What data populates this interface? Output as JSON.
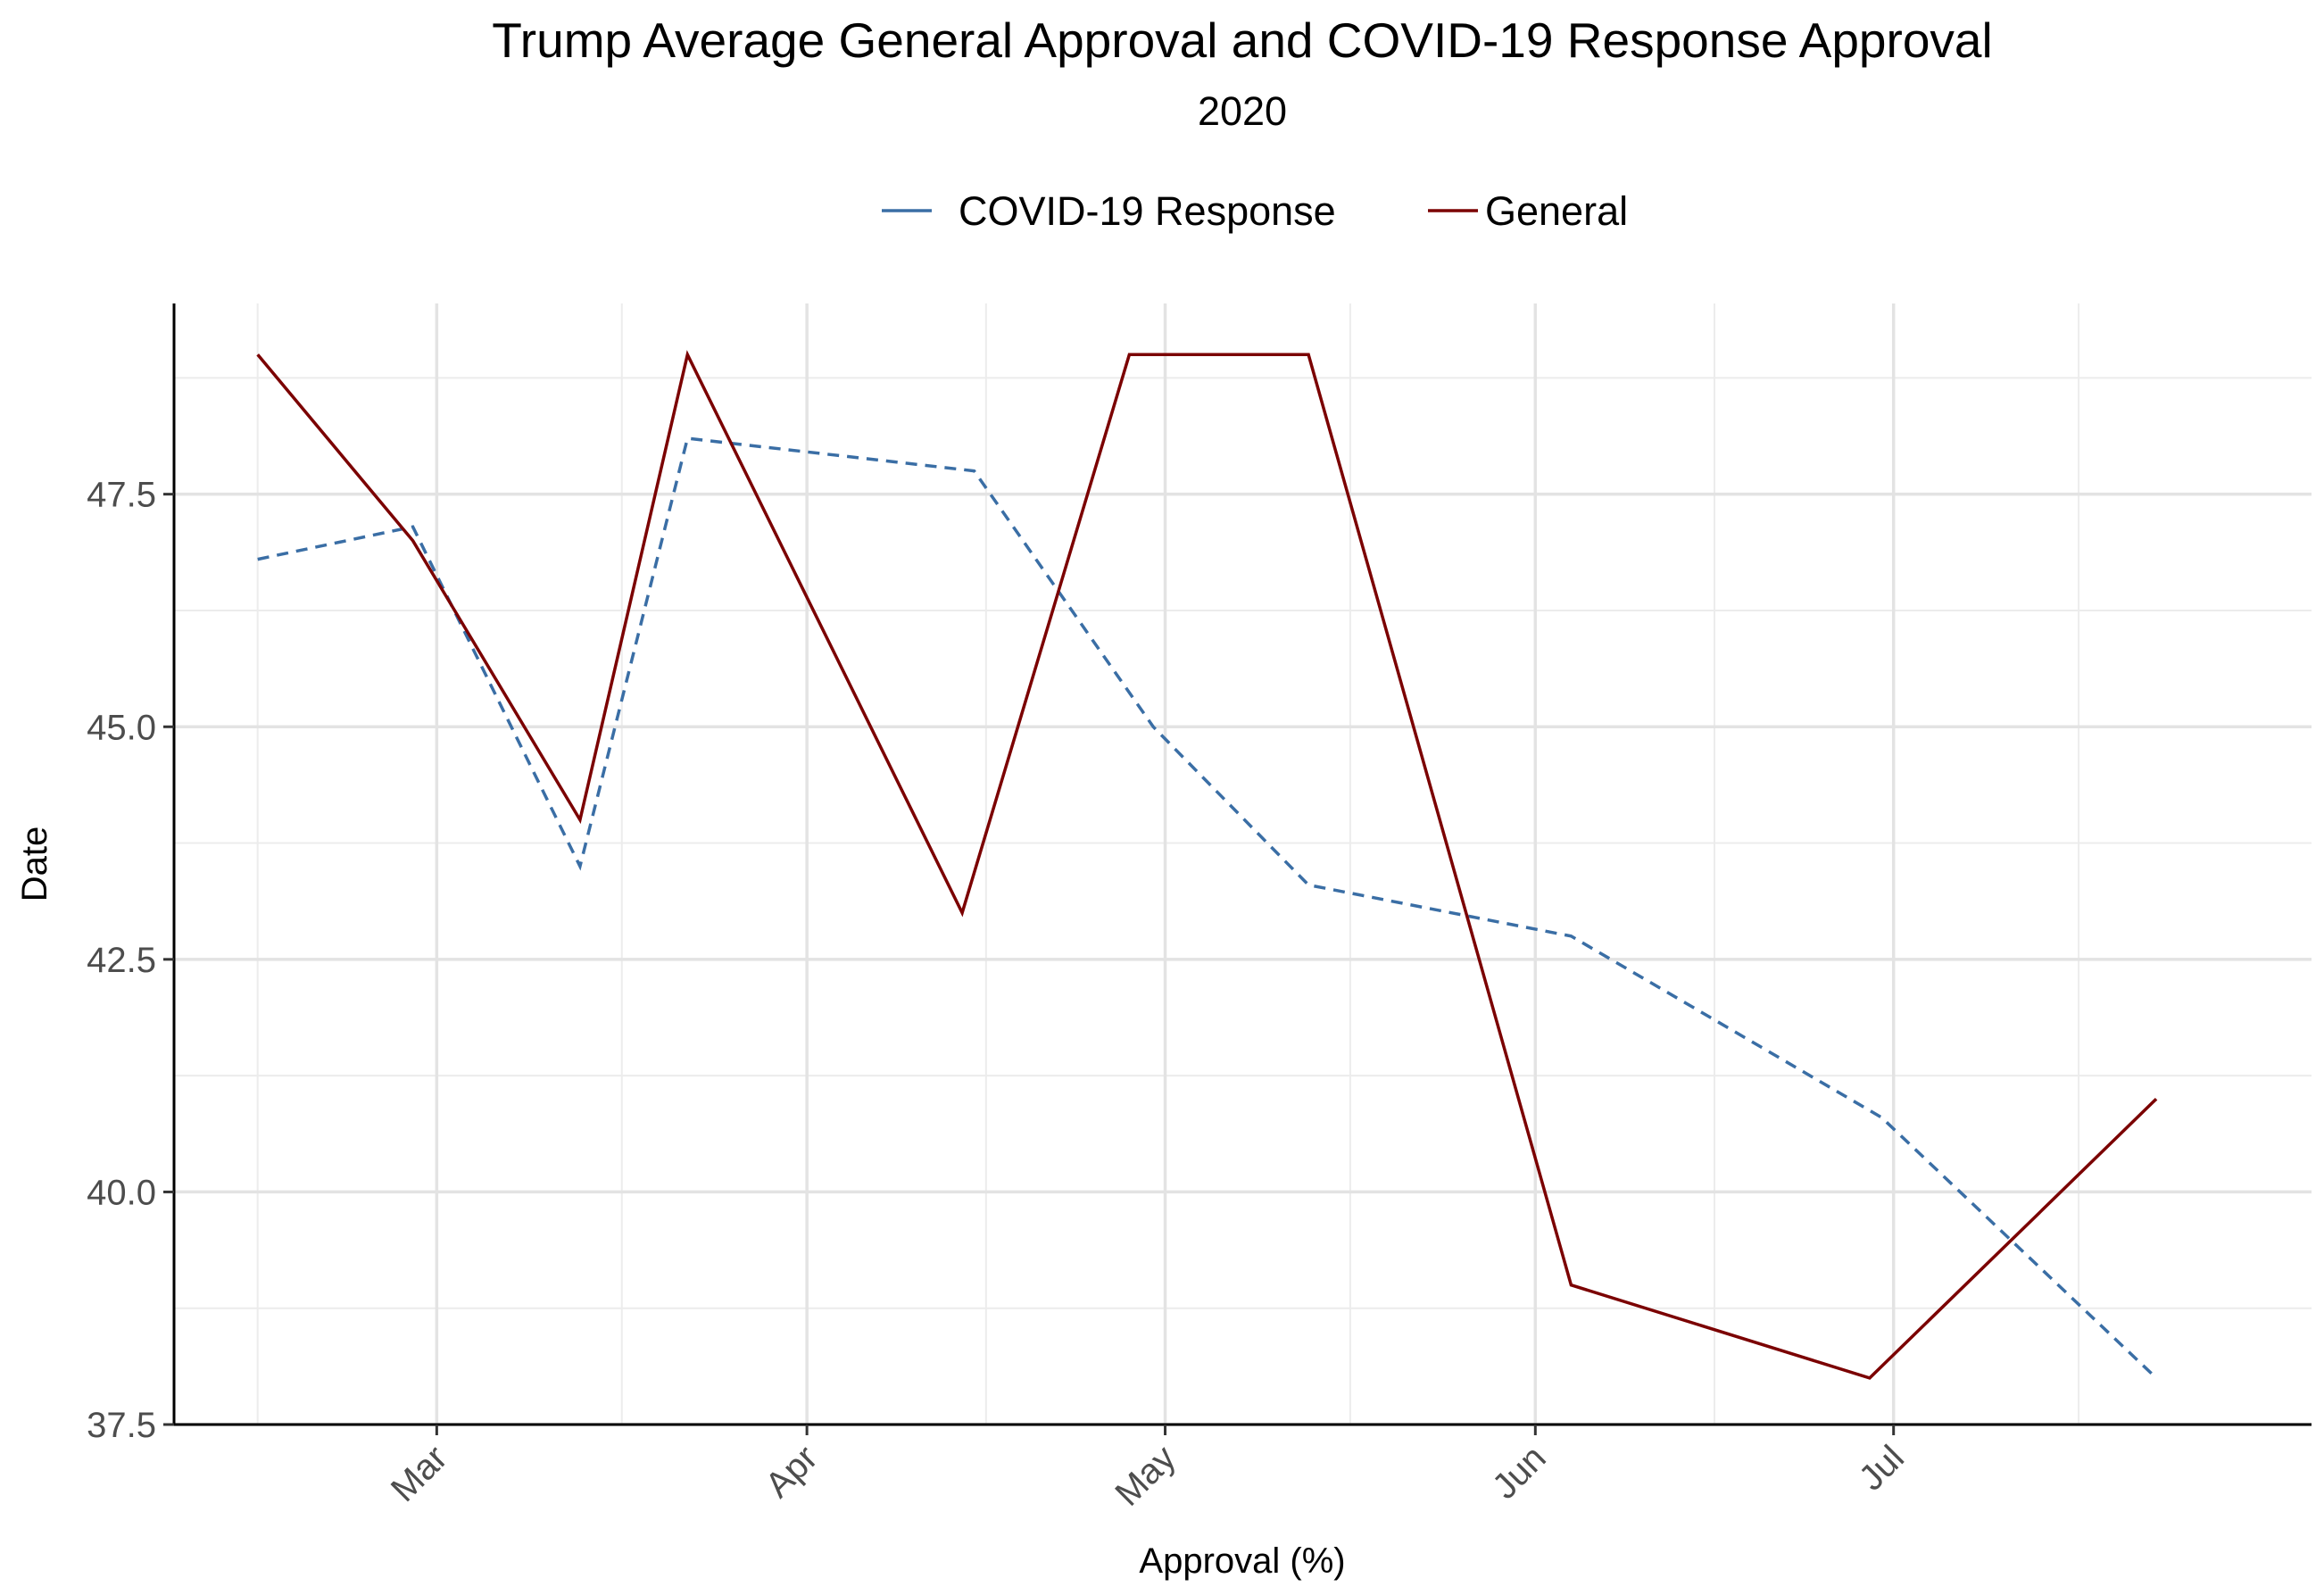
{
  "chart_data": {
    "type": "line",
    "title": "Trump Average General Approval and COVID-19 Response Approval",
    "subtitle": "2020",
    "xlabel": "Approval (%)",
    "ylabel": "Date",
    "x_tick_labels": [
      {
        "label": "Mar",
        "date": "2020-03-01"
      },
      {
        "label": "Apr",
        "date": "2020-04-01"
      },
      {
        "label": "May",
        "date": "2020-05-01"
      },
      {
        "label": "Jun",
        "date": "2020-06-01"
      },
      {
        "label": "Jul",
        "date": "2020-07-01"
      }
    ],
    "y_ticks": [
      37.5,
      40.0,
      42.5,
      45.0,
      47.5
    ],
    "y_tick_labels": [
      "37.5",
      "40.0",
      "42.5",
      "45.0",
      "47.5"
    ],
    "xlim": [
      "2020-02-08",
      "2020-08-05"
    ],
    "ylim": [
      37.5,
      49.55
    ],
    "grid": true,
    "legend_position": "top",
    "series": [
      {
        "name": "COVID-19 Response",
        "color": "#3a6ea5",
        "line_style": "dashed",
        "points": [
          {
            "x": "2020-02-15",
            "y": 46.8
          },
          {
            "x": "2020-02-28",
            "y": 47.15
          },
          {
            "x": "2020-03-13",
            "y": 43.5
          },
          {
            "x": "2020-03-22",
            "y": 48.1
          },
          {
            "x": "2020-04-15",
            "y": 47.75
          },
          {
            "x": "2020-04-30",
            "y": 45.0
          },
          {
            "x": "2020-05-13",
            "y": 43.3
          },
          {
            "x": "2020-06-04",
            "y": 42.75
          },
          {
            "x": "2020-06-30",
            "y": 40.8
          },
          {
            "x": "2020-07-23",
            "y": 38.0
          }
        ]
      },
      {
        "name": "General",
        "color": "#7b0000",
        "line_style": "solid",
        "points": [
          {
            "x": "2020-02-15",
            "y": 49.0
          },
          {
            "x": "2020-02-28",
            "y": 47.0
          },
          {
            "x": "2020-03-13",
            "y": 44.0
          },
          {
            "x": "2020-03-22",
            "y": 49.0
          },
          {
            "x": "2020-04-14",
            "y": 43.0
          },
          {
            "x": "2020-04-28",
            "y": 49.0
          },
          {
            "x": "2020-05-13",
            "y": 49.0
          },
          {
            "x": "2020-06-04",
            "y": 39.0
          },
          {
            "x": "2020-06-29",
            "y": 38.0
          },
          {
            "x": "2020-07-23",
            "y": 41.0
          }
        ]
      }
    ]
  }
}
